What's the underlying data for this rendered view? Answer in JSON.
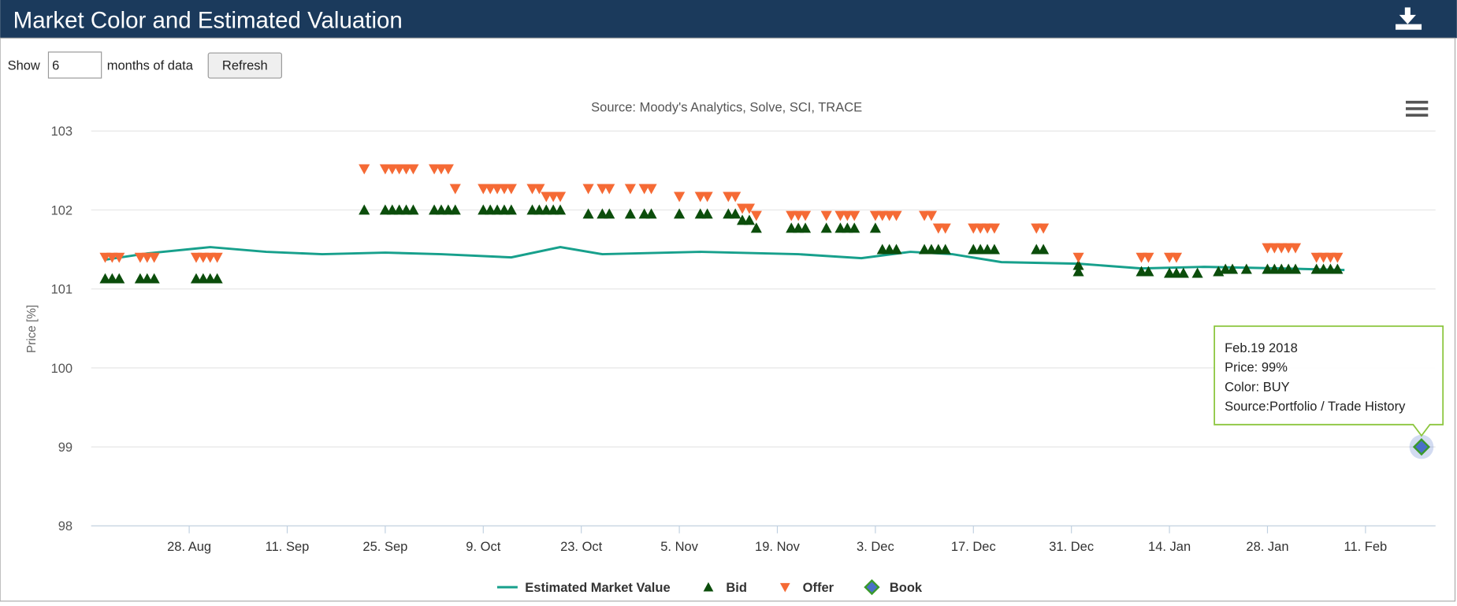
{
  "header": {
    "title": "Market Color and Estimated Valuation"
  },
  "controls": {
    "show_label": "Show",
    "months": "6",
    "months_label": "months of data",
    "refresh": "Refresh"
  },
  "chart_data": {
    "type": "scatter",
    "subtitle": "Source: Moody's Analytics, Solve, SCI, TRACE",
    "y_label": "Price [%]",
    "xlim": [
      -14,
      178
    ],
    "ylim": [
      98,
      103
    ],
    "yticks": [
      98,
      99,
      100,
      101,
      102,
      103
    ],
    "xticks": [
      {
        "value": 0,
        "label": "28. Aug"
      },
      {
        "value": 14,
        "label": "11. Sep"
      },
      {
        "value": 28,
        "label": "25. Sep"
      },
      {
        "value": 42,
        "label": "9. Oct"
      },
      {
        "value": 56,
        "label": "23. Oct"
      },
      {
        "value": 70,
        "label": "5. Nov"
      },
      {
        "value": 84,
        "label": "19. Nov"
      },
      {
        "value": 98,
        "label": "3. Dec"
      },
      {
        "value": 112,
        "label": "17. Dec"
      },
      {
        "value": 126,
        "label": "31. Dec"
      },
      {
        "value": 140,
        "label": "14. Jan"
      },
      {
        "value": 154,
        "label": "28. Jan"
      },
      {
        "value": 168,
        "label": "11. Feb"
      }
    ],
    "grid": true,
    "series": [
      {
        "name": "Estimated Market Value",
        "kind": "line",
        "color": "#17a08c",
        "x": [
          -12,
          -6,
          3,
          11,
          19,
          28,
          36,
          46,
          53,
          59,
          73,
          87,
          96,
          103,
          109,
          116,
          127,
          136,
          145,
          156,
          165
        ],
        "values": [
          101.37,
          101.45,
          101.53,
          101.47,
          101.44,
          101.46,
          101.44,
          101.4,
          101.53,
          101.44,
          101.47,
          101.44,
          101.39,
          101.47,
          101.44,
          101.34,
          101.32,
          101.26,
          101.28,
          101.26,
          101.24
        ]
      },
      {
        "name": "Bid",
        "kind": "triangle-up",
        "color": "#0b4d0b",
        "x": [
          -12,
          -11,
          -10,
          -7,
          -6,
          -5,
          1,
          2,
          3,
          4,
          25,
          28,
          29,
          30,
          31,
          32,
          35,
          36,
          37,
          38,
          42,
          43,
          44,
          45,
          46,
          49,
          50,
          51,
          52,
          53,
          57,
          59,
          60,
          63,
          65,
          66,
          70,
          73,
          74,
          77,
          78,
          79,
          80,
          81,
          86,
          87,
          88,
          91,
          93,
          94,
          95,
          98,
          99,
          100,
          101,
          105,
          106,
          107,
          108,
          112,
          113,
          114,
          115,
          121,
          122,
          127,
          127,
          136,
          137,
          140,
          141,
          142,
          144,
          147,
          148,
          149,
          151,
          154,
          155,
          156,
          157,
          158,
          161,
          162,
          163,
          164
        ],
        "values": [
          101.13,
          101.13,
          101.13,
          101.13,
          101.13,
          101.13,
          101.13,
          101.13,
          101.13,
          101.13,
          102,
          102,
          102,
          102,
          102,
          102,
          102,
          102,
          102,
          102,
          102,
          102,
          102,
          102,
          102,
          102,
          102,
          102,
          102,
          102,
          101.95,
          101.95,
          101.95,
          101.95,
          101.95,
          101.95,
          101.95,
          101.95,
          101.95,
          101.95,
          101.95,
          101.87,
          101.87,
          101.77,
          101.77,
          101.77,
          101.77,
          101.77,
          101.77,
          101.77,
          101.77,
          101.77,
          101.5,
          101.5,
          101.5,
          101.5,
          101.5,
          101.5,
          101.5,
          101.5,
          101.5,
          101.5,
          101.5,
          101.5,
          101.5,
          101.3,
          101.22,
          101.22,
          101.22,
          101.2,
          101.2,
          101.2,
          101.2,
          101.22,
          101.25,
          101.25,
          101.25,
          101.25,
          101.25,
          101.25,
          101.25,
          101.25,
          101.25,
          101.25,
          101.25,
          101.25
        ]
      },
      {
        "name": "Offer",
        "kind": "triangle-down",
        "color": "#f56a35",
        "x": [
          -12,
          -11,
          -10,
          -7,
          -6,
          -5,
          1,
          2,
          3,
          4,
          25,
          28,
          29,
          30,
          31,
          32,
          35,
          36,
          37,
          38,
          42,
          43,
          44,
          45,
          46,
          49,
          50,
          51,
          52,
          53,
          57,
          59,
          60,
          63,
          65,
          66,
          70,
          73,
          74,
          77,
          78,
          79,
          80,
          81,
          86,
          87,
          88,
          91,
          93,
          94,
          95,
          98,
          99,
          100,
          101,
          105,
          106,
          107,
          108,
          112,
          113,
          114,
          115,
          121,
          122,
          127,
          136,
          137,
          140,
          141,
          154,
          155,
          156,
          157,
          158,
          161,
          162,
          163,
          164
        ],
        "values": [
          101.4,
          101.4,
          101.4,
          101.4,
          101.4,
          101.4,
          101.4,
          101.4,
          101.4,
          101.4,
          102.52,
          102.52,
          102.52,
          102.52,
          102.52,
          102.52,
          102.52,
          102.52,
          102.52,
          102.27,
          102.27,
          102.27,
          102.27,
          102.27,
          102.27,
          102.27,
          102.27,
          102.17,
          102.17,
          102.17,
          102.27,
          102.27,
          102.27,
          102.27,
          102.27,
          102.27,
          102.17,
          102.17,
          102.17,
          102.17,
          102.17,
          102.02,
          102.02,
          101.93,
          101.93,
          101.93,
          101.93,
          101.93,
          101.93,
          101.93,
          101.93,
          101.93,
          101.93,
          101.93,
          101.93,
          101.93,
          101.93,
          101.77,
          101.77,
          101.77,
          101.77,
          101.77,
          101.77,
          101.77,
          101.77,
          101.4,
          101.4,
          101.4,
          101.4,
          101.4,
          101.52,
          101.52,
          101.52,
          101.52,
          101.52,
          101.4,
          101.4,
          101.4,
          101.4
        ]
      },
      {
        "name": "Book",
        "kind": "diamond",
        "color": "#4a6fc8",
        "x": [
          176
        ],
        "values": [
          99
        ]
      }
    ],
    "tooltip": [
      "Feb.19 2018",
      "Price: 99%",
      "Color: BUY",
      "Source:Portfolio / Trade History"
    ]
  }
}
